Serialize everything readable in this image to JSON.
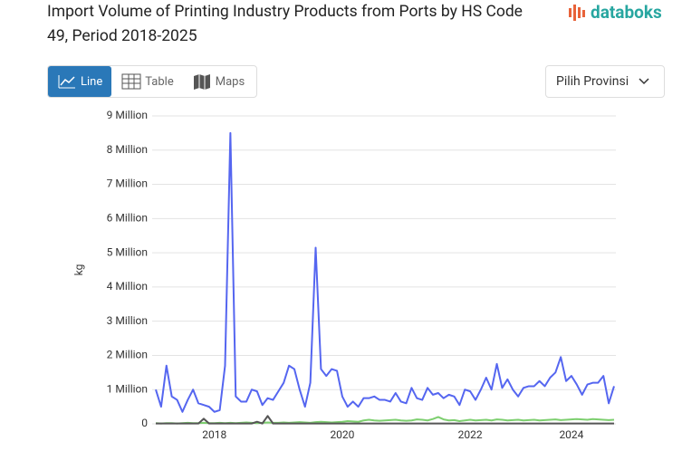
{
  "brand": "databoks",
  "tabs": [
    "Line",
    "Table",
    "Maps"
  ],
  "dropdown": "Pilih Provinsi",
  "chart_data": {
    "type": "line",
    "title": "Import Volume of Printing Industry Products from Ports by HS Code 49, Period 2018-2025",
    "y_label": "kg",
    "categories": [
      null,
      null,
      null,
      null,
      null,
      null,
      null,
      null,
      null,
      null,
      null,
      "2018",
      null,
      null,
      null,
      null,
      null,
      null,
      null,
      null,
      null,
      null,
      null,
      null,
      null,
      null,
      null,
      null,
      null,
      null,
      null,
      null,
      null,
      null,
      null,
      "2020",
      null,
      null,
      null,
      null,
      null,
      null,
      null,
      null,
      null,
      null,
      null,
      null,
      null,
      null,
      null,
      null,
      null,
      null,
      null,
      null,
      null,
      null,
      null,
      "2022",
      null,
      null,
      null,
      null,
      null,
      null,
      null,
      null,
      null,
      null,
      null,
      null,
      null,
      null,
      null,
      null,
      null,
      null,
      "2024",
      null,
      null,
      null,
      null,
      null,
      null,
      null,
      null
    ],
    "ylim": [
      0,
      9000000
    ],
    "yticks": [
      0,
      {
        "value": 1000000,
        "label": "1 Million"
      },
      {
        "value": 2000000,
        "label": "2 Million"
      },
      {
        "value": 3000000,
        "label": "3 Million"
      },
      {
        "value": 4000000,
        "label": "4 Million"
      },
      {
        "value": 5000000,
        "label": "5 Million"
      },
      {
        "value": 6000000,
        "label": "6 Million"
      },
      {
        "value": 7000000,
        "label": "7 Million"
      },
      {
        "value": 8000000,
        "label": "8 Million"
      },
      {
        "value": 9000000,
        "label": "9 Million"
      }
    ],
    "grid": true,
    "series": [
      {
        "color": "#5566f0",
        "values": [
          1000000,
          500000,
          1700000,
          800000,
          700000,
          350000,
          700000,
          1000000,
          600000,
          550000,
          500000,
          350000,
          400000,
          1700000,
          8500000,
          800000,
          650000,
          650000,
          1000000,
          950000,
          550000,
          750000,
          700000,
          950000,
          1200000,
          1700000,
          1600000,
          1000000,
          500000,
          1200000,
          5150000,
          1600000,
          1400000,
          1600000,
          1550000,
          800000,
          500000,
          650000,
          500000,
          750000,
          750000,
          800000,
          700000,
          700000,
          650000,
          900000,
          650000,
          600000,
          1050000,
          750000,
          700000,
          1050000,
          850000,
          900000,
          750000,
          850000,
          800000,
          550000,
          1000000,
          950000,
          700000,
          1000000,
          1350000,
          1000000,
          1750000,
          1050000,
          1300000,
          1000000,
          800000,
          1050000,
          1100000,
          1100000,
          1250000,
          1100000,
          1350000,
          1500000,
          1950000,
          1250000,
          1400000,
          1150000,
          850000,
          1150000,
          1200000,
          1200000,
          1400000,
          600000,
          1100000
        ]
      },
      {
        "color": "#7dcf6f",
        "values": [
          20000,
          10000,
          20000,
          20000,
          10000,
          20000,
          30000,
          20000,
          20000,
          30000,
          20000,
          20000,
          30000,
          20000,
          30000,
          20000,
          30000,
          40000,
          30000,
          20000,
          30000,
          40000,
          30000,
          30000,
          40000,
          30000,
          40000,
          50000,
          40000,
          30000,
          50000,
          60000,
          50000,
          40000,
          50000,
          60000,
          80000,
          70000,
          60000,
          100000,
          120000,
          100000,
          90000,
          100000,
          110000,
          120000,
          100000,
          90000,
          100000,
          130000,
          120000,
          100000,
          140000,
          200000,
          130000,
          100000,
          110000,
          80000,
          100000,
          120000,
          100000,
          110000,
          120000,
          100000,
          130000,
          120000,
          100000,
          110000,
          120000,
          100000,
          110000,
          120000,
          100000,
          110000,
          120000,
          130000,
          110000,
          120000,
          130000,
          140000,
          130000,
          120000,
          140000,
          130000,
          120000,
          110000,
          120000
        ]
      },
      {
        "color": "#555555",
        "values": [
          10000,
          10000,
          10000,
          10000,
          10000,
          10000,
          10000,
          10000,
          10000,
          150000,
          10000,
          10000,
          10000,
          10000,
          10000,
          10000,
          10000,
          10000,
          10000,
          60000,
          10000,
          230000,
          10000,
          10000,
          10000,
          10000,
          10000,
          10000,
          10000,
          10000,
          10000,
          10000,
          10000,
          10000,
          10000,
          10000,
          10000,
          10000,
          10000,
          10000,
          10000,
          10000,
          10000,
          10000,
          10000,
          10000,
          10000,
          10000,
          10000,
          10000,
          10000,
          10000,
          10000,
          10000,
          10000,
          10000,
          10000,
          10000,
          10000,
          10000,
          10000,
          10000,
          10000,
          10000,
          10000,
          10000,
          10000,
          10000,
          10000,
          10000,
          10000,
          10000,
          10000,
          10000,
          10000,
          10000,
          10000,
          10000,
          10000,
          10000,
          10000,
          10000,
          10000,
          10000,
          10000,
          10000,
          10000
        ]
      }
    ]
  }
}
